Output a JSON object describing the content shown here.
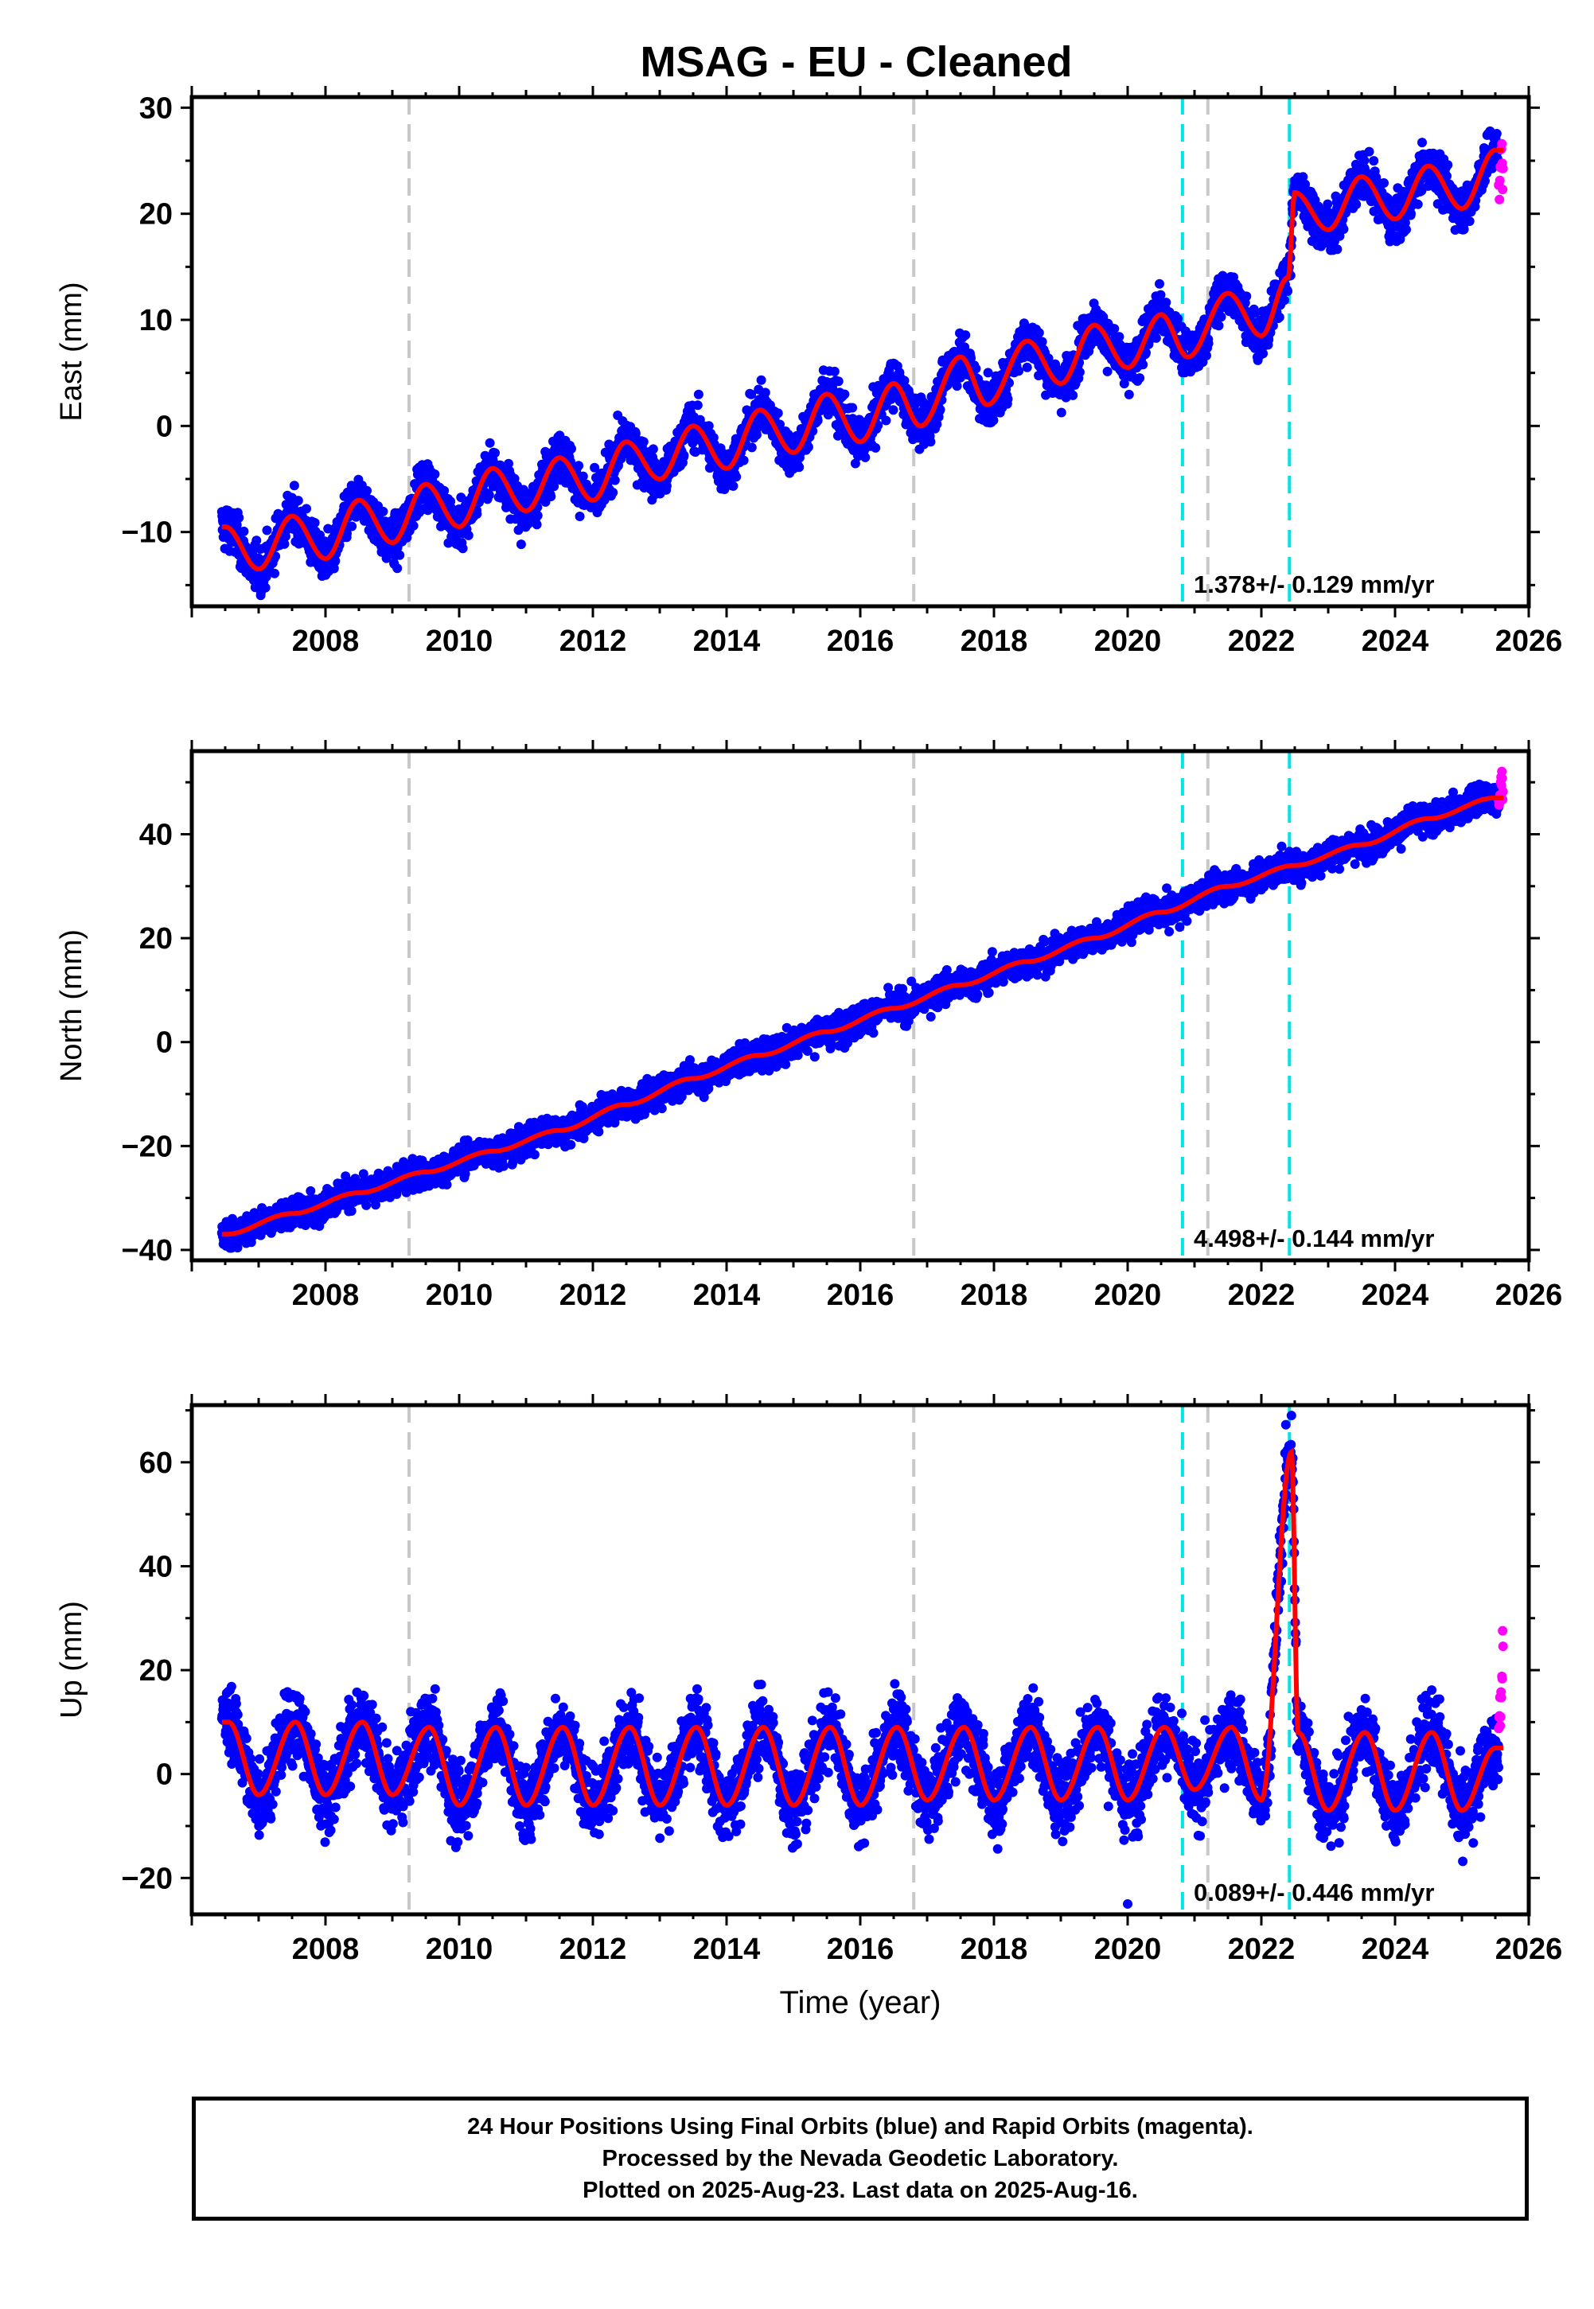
{
  "chart_data": {
    "title": "MSAG  - EU - Cleaned",
    "xlabel": "Time (year)",
    "x_ticks": [
      2008,
      2010,
      2012,
      2014,
      2016,
      2018,
      2020,
      2022,
      2024,
      2026
    ],
    "xlim": [
      2006.0,
      2026.0
    ],
    "data_span": [
      2006.45,
      2025.62
    ],
    "rapid_start": 2025.55,
    "grey_dashed_lines": [
      2009.25,
      2016.8,
      2021.2
    ],
    "cyan_dashed_lines": [
      2020.82,
      2022.42
    ],
    "colors": {
      "final_orbits": "#0000ff",
      "rapid_orbits": "#ff00ff",
      "model": "#ff0000",
      "grey_line": "#c8c8c8",
      "cyan_line": "#00e5e5"
    },
    "panels": [
      {
        "type": "scatter",
        "ylabel": "East (mm)",
        "ylim": [
          -17,
          31
        ],
        "y_ticks": [
          -10,
          0,
          10,
          20,
          30
        ],
        "rate_label": "1.378+/- 0.129 mm/yr",
        "series": [
          {
            "name": "Final Orbits",
            "points": [
              [
                2006.5,
                -9.5
              ],
              [
                2007.0,
                -13.5
              ],
              [
                2007.5,
                -8.5
              ],
              [
                2008.0,
                -12.5
              ],
              [
                2008.5,
                -7
              ],
              [
                2009.0,
                -11
              ],
              [
                2009.5,
                -5.5
              ],
              [
                2010.0,
                -9.5
              ],
              [
                2010.5,
                -4
              ],
              [
                2011.0,
                -8
              ],
              [
                2011.5,
                -3
              ],
              [
                2012.0,
                -7
              ],
              [
                2012.5,
                -1.5
              ],
              [
                2013.0,
                -5
              ],
              [
                2013.5,
                0
              ],
              [
                2014.0,
                -4
              ],
              [
                2014.5,
                1.5
              ],
              [
                2015.0,
                -2.5
              ],
              [
                2015.5,
                3
              ],
              [
                2016.0,
                -1.5
              ],
              [
                2016.5,
                4
              ],
              [
                2016.9,
                0
              ],
              [
                2017.5,
                6.5
              ],
              [
                2017.9,
                2
              ],
              [
                2018.5,
                8
              ],
              [
                2019.0,
                4
              ],
              [
                2019.5,
                9.5
              ],
              [
                2020.0,
                5.5
              ],
              [
                2020.5,
                10.5
              ],
              [
                2020.9,
                6.5
              ],
              [
                2021.5,
                12.5
              ],
              [
                2022.0,
                8.5
              ],
              [
                2022.4,
                14
              ],
              [
                2022.5,
                22
              ],
              [
                2023.0,
                18.5
              ],
              [
                2023.5,
                23.5
              ],
              [
                2024.0,
                19.5
              ],
              [
                2024.5,
                24.5
              ],
              [
                2025.0,
                20.5
              ],
              [
                2025.5,
                26
              ]
            ]
          },
          {
            "name": "Rapid Orbits",
            "points": [
              [
                2025.56,
                22.5
              ],
              [
                2025.58,
                24.5
              ],
              [
                2025.6,
                26
              ],
              [
                2025.61,
                23
              ],
              [
                2025.62,
                25.5
              ]
            ]
          }
        ],
        "model_curve": "trend plus annual sinusoid with offsets at cyan lines"
      },
      {
        "type": "scatter",
        "ylabel": "North (mm)",
        "ylim": [
          -42,
          56
        ],
        "y_ticks": [
          -40,
          -20,
          0,
          20,
          40
        ],
        "rate_label": "4.498+/- 0.144 mm/yr",
        "series": [
          {
            "name": "Final Orbits",
            "points": [
              [
                2006.5,
                -37
              ],
              [
                2007.5,
                -33
              ],
              [
                2008.5,
                -29
              ],
              [
                2009.5,
                -25
              ],
              [
                2010.5,
                -21
              ],
              [
                2011.5,
                -17
              ],
              [
                2012.5,
                -12
              ],
              [
                2013.5,
                -7
              ],
              [
                2014.5,
                -2.5
              ],
              [
                2015.5,
                2
              ],
              [
                2016.5,
                6.5
              ],
              [
                2017.5,
                11
              ],
              [
                2018.5,
                15.5
              ],
              [
                2019.5,
                20
              ],
              [
                2020.5,
                25
              ],
              [
                2021.5,
                30
              ],
              [
                2022.5,
                34
              ],
              [
                2023.5,
                38
              ],
              [
                2024.5,
                43
              ],
              [
                2025.5,
                47
              ]
            ]
          },
          {
            "name": "Rapid Orbits",
            "points": [
              [
                2025.56,
                46
              ],
              [
                2025.58,
                50
              ],
              [
                2025.6,
                52
              ],
              [
                2025.61,
                48
              ],
              [
                2025.62,
                51
              ]
            ]
          }
        ],
        "model_curve": "trend plus small annual sinusoid"
      },
      {
        "type": "scatter",
        "ylabel": "Up (mm)",
        "ylim": [
          -27,
          71
        ],
        "y_ticks": [
          -20,
          0,
          20,
          40,
          60
        ],
        "rate_label": "0.089+/- 0.446 mm/yr",
        "series": [
          {
            "name": "Final Orbits",
            "points": [
              [
                2006.55,
                10
              ],
              [
                2007.0,
                -4
              ],
              [
                2007.55,
                10
              ],
              [
                2008.0,
                -4
              ],
              [
                2008.55,
                10
              ],
              [
                2009.0,
                -4
              ],
              [
                2009.55,
                9
              ],
              [
                2010.0,
                -6
              ],
              [
                2010.55,
                9
              ],
              [
                2011.0,
                -6
              ],
              [
                2011.55,
                9
              ],
              [
                2012.0,
                -6
              ],
              [
                2012.55,
                9
              ],
              [
                2013.0,
                -6
              ],
              [
                2013.55,
                9
              ],
              [
                2014.0,
                -6
              ],
              [
                2014.55,
                9
              ],
              [
                2015.0,
                -6
              ],
              [
                2015.55,
                9
              ],
              [
                2016.0,
                -6
              ],
              [
                2016.55,
                9
              ],
              [
                2017.0,
                -5
              ],
              [
                2017.55,
                9
              ],
              [
                2018.0,
                -5
              ],
              [
                2018.55,
                9
              ],
              [
                2019.0,
                -5
              ],
              [
                2019.55,
                9
              ],
              [
                2020.0,
                -5
              ],
              [
                2020.55,
                9
              ],
              [
                2021.0,
                -3
              ],
              [
                2021.55,
                9
              ],
              [
                2022.0,
                -5
              ],
              [
                2022.45,
                62
              ],
              [
                2022.55,
                8
              ],
              [
                2023.0,
                -7
              ],
              [
                2023.55,
                8
              ],
              [
                2024.0,
                -7
              ],
              [
                2024.55,
                8
              ],
              [
                2025.0,
                -7
              ],
              [
                2025.5,
                5
              ]
            ]
          },
          {
            "name": "Rapid Orbits",
            "points": [
              [
                2025.56,
                10
              ],
              [
                2025.58,
                15
              ],
              [
                2025.6,
                20
              ],
              [
                2025.61,
                24
              ],
              [
                2025.62,
                22
              ]
            ]
          }
        ],
        "model_curve": "annual sinusoid, amplitude about 7 mm"
      }
    ]
  },
  "footer": {
    "line1": "24 Hour Positions Using Final Orbits (blue) and Rapid Orbits (magenta).",
    "line2": "Processed by the Nevada Geodetic Laboratory.",
    "line3": "Plotted on 2025-Aug-23. Last data on 2025-Aug-16."
  }
}
